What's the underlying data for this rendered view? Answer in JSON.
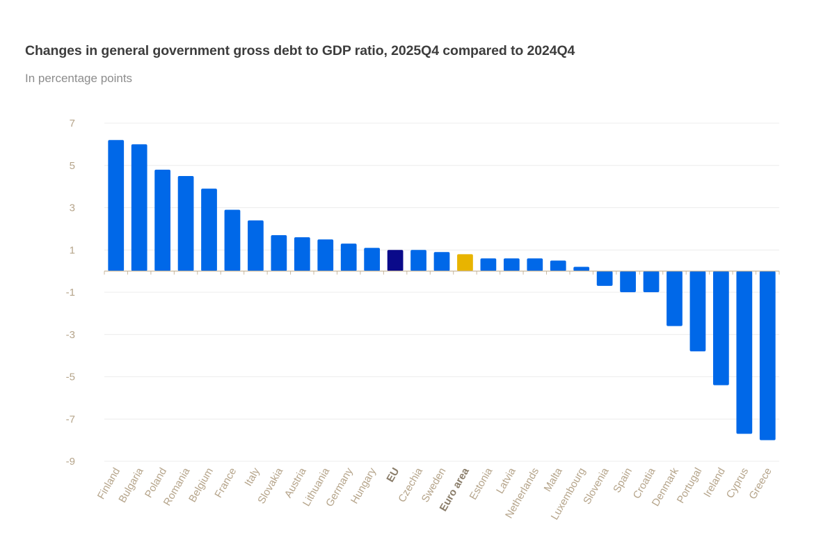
{
  "chart_data": {
    "type": "bar",
    "title": "Changes in general government gross debt to GDP ratio, 2025Q4 compared to 2024Q4",
    "subtitle": "In percentage points",
    "xlabel": "",
    "ylabel": "",
    "ylim": [
      -9,
      7
    ],
    "yticks": [
      7,
      5,
      3,
      1,
      -1,
      -3,
      -5,
      -7,
      -9
    ],
    "grid": true,
    "legend": "none",
    "colors": {
      "default": "#0068e8",
      "EU": "#0a0a8a",
      "Euro area": "#e8b400"
    },
    "highlight_bold_labels": [
      "EU",
      "Euro area"
    ],
    "categories": [
      "Finland",
      "Bulgaria",
      "Poland",
      "Romania",
      "Belgium",
      "France",
      "Italy",
      "Slovakia",
      "Austria",
      "Lithuania",
      "Germany",
      "Hungary",
      "EU",
      "Czechia",
      "Sweden",
      "Euro area",
      "Estonia",
      "Latvia",
      "Netherlands",
      "Malta",
      "Luxembourg",
      "Slovenia",
      "Spain",
      "Croatia",
      "Denmark",
      "Portugal",
      "Ireland",
      "Cyprus",
      "Greece"
    ],
    "values": [
      6.2,
      6.0,
      4.8,
      4.5,
      3.9,
      2.9,
      2.4,
      1.7,
      1.6,
      1.5,
      1.3,
      1.1,
      1.0,
      1.0,
      0.9,
      0.8,
      0.6,
      0.6,
      0.6,
      0.5,
      0.2,
      -0.7,
      -1.0,
      -1.0,
      -2.6,
      -3.8,
      -5.4,
      -7.7,
      -8.0
    ]
  }
}
